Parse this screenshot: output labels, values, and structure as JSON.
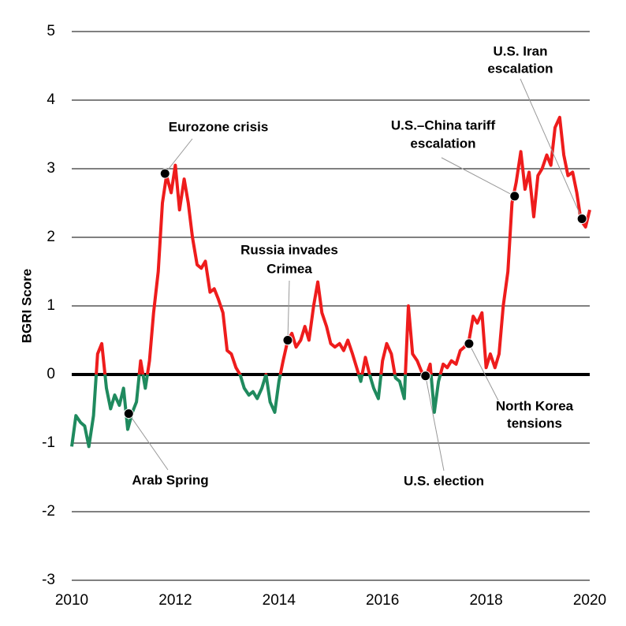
{
  "chart_data": {
    "type": "line",
    "ylabel": "BGRI Score",
    "xlim": [
      2010,
      2020
    ],
    "xticks": [
      2010,
      2012,
      2014,
      2016,
      2018,
      2020
    ],
    "ylim": [
      -3,
      5
    ],
    "yticks": [
      -3,
      -2,
      -1,
      0,
      1,
      2,
      3,
      4,
      5
    ],
    "grid": true,
    "color_above": "#ee1c1c",
    "color_below": "#1f8a5e",
    "x": [
      2010.0,
      2010.08,
      2010.17,
      2010.25,
      2010.33,
      2010.42,
      2010.5,
      2010.58,
      2010.67,
      2010.75,
      2010.83,
      2010.92,
      2011.0,
      2011.08,
      2011.17,
      2011.25,
      2011.33,
      2011.42,
      2011.5,
      2011.58,
      2011.67,
      2011.75,
      2011.83,
      2011.92,
      2012.0,
      2012.08,
      2012.17,
      2012.25,
      2012.33,
      2012.42,
      2012.5,
      2012.58,
      2012.67,
      2012.75,
      2012.83,
      2012.92,
      2013.0,
      2013.08,
      2013.17,
      2013.25,
      2013.33,
      2013.42,
      2013.5,
      2013.58,
      2013.67,
      2013.75,
      2013.83,
      2013.92,
      2014.0,
      2014.08,
      2014.17,
      2014.25,
      2014.33,
      2014.42,
      2014.5,
      2014.58,
      2014.67,
      2014.75,
      2014.83,
      2014.92,
      2015.0,
      2015.08,
      2015.17,
      2015.25,
      2015.33,
      2015.42,
      2015.5,
      2015.58,
      2015.67,
      2015.75,
      2015.83,
      2015.92,
      2016.0,
      2016.08,
      2016.17,
      2016.25,
      2016.33,
      2016.42,
      2016.5,
      2016.58,
      2016.67,
      2016.75,
      2016.83,
      2016.92,
      2017.0,
      2017.08,
      2017.17,
      2017.25,
      2017.33,
      2017.42,
      2017.5,
      2017.58,
      2017.67,
      2017.75,
      2017.83,
      2017.92,
      2018.0,
      2018.08,
      2018.17,
      2018.25,
      2018.33,
      2018.42,
      2018.5,
      2018.58,
      2018.67,
      2018.75,
      2018.83,
      2018.92,
      2019.0,
      2019.08,
      2019.17,
      2019.25,
      2019.33,
      2019.42,
      2019.5,
      2019.58,
      2019.67,
      2019.75,
      2019.83,
      2019.92,
      2020.0
    ],
    "values": [
      -1.05,
      -0.6,
      -0.7,
      -0.75,
      -1.05,
      -0.6,
      0.3,
      0.45,
      -0.2,
      -0.5,
      -0.3,
      -0.45,
      -0.2,
      -0.8,
      -0.55,
      -0.4,
      0.2,
      -0.2,
      0.2,
      0.9,
      1.5,
      2.5,
      2.9,
      2.65,
      3.05,
      2.4,
      2.85,
      2.5,
      2.0,
      1.6,
      1.55,
      1.65,
      1.2,
      1.25,
      1.1,
      0.9,
      0.35,
      0.3,
      0.1,
      0.0,
      -0.2,
      -0.3,
      -0.25,
      -0.35,
      -0.2,
      0.0,
      -0.4,
      -0.55,
      -0.1,
      0.2,
      0.5,
      0.6,
      0.4,
      0.5,
      0.7,
      0.5,
      1.0,
      1.35,
      0.9,
      0.7,
      0.45,
      0.4,
      0.45,
      0.35,
      0.5,
      0.3,
      0.1,
      -0.1,
      0.25,
      0.0,
      -0.2,
      -0.35,
      0.2,
      0.45,
      0.3,
      -0.05,
      -0.1,
      -0.35,
      1.0,
      0.3,
      0.2,
      0.05,
      -0.05,
      0.15,
      -0.55,
      -0.1,
      0.15,
      0.1,
      0.2,
      0.15,
      0.35,
      0.4,
      0.5,
      0.85,
      0.75,
      0.9,
      0.1,
      0.3,
      0.1,
      0.3,
      1.0,
      1.5,
      2.5,
      2.8,
      3.25,
      2.7,
      2.95,
      2.3,
      2.9,
      3.0,
      3.2,
      3.05,
      3.6,
      3.75,
      3.2,
      2.9,
      2.95,
      2.65,
      2.25,
      2.15,
      2.4
    ],
    "annotations": [
      {
        "lines": [
          "Arab Spring"
        ],
        "x": 2011.1,
        "y": -0.57
      },
      {
        "lines": [
          "Eurozone crisis"
        ],
        "x": 2011.8,
        "y": 2.93
      },
      {
        "lines": [
          "Russia invades",
          "Crimea"
        ],
        "x": 2014.17,
        "y": 0.5
      },
      {
        "lines": [
          "U.S. election"
        ],
        "x": 2016.83,
        "y": -0.02
      },
      {
        "lines": [
          "North Korea",
          "tensions"
        ],
        "x": 2017.67,
        "y": 0.45
      },
      {
        "lines": [
          "U.S.–China tariff",
          "escalation"
        ],
        "x": 2018.55,
        "y": 2.6
      },
      {
        "lines": [
          "U.S. Iran",
          "escalation"
        ],
        "x": 2019.85,
        "y": 2.27
      }
    ]
  }
}
